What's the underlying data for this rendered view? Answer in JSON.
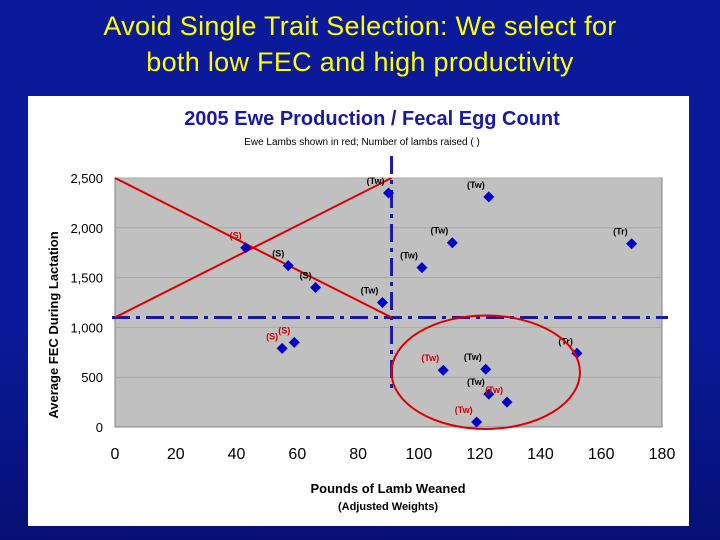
{
  "slide": {
    "title_line1": "Avoid Single Trait Selection:  We select for",
    "title_line2": "both low FEC and high productivity"
  },
  "chart_data": {
    "type": "scatter",
    "title": "2005 Ewe Production / Fecal Egg Count",
    "subtitle": "Ewe Lambs shown in red; Number of lambs raised ( )",
    "xlabel": "Pounds of Lamb Weaned",
    "xlabel_sub": "(Adjusted Weights)",
    "ylabel": "Average FEC During Lactation",
    "xlim": [
      0,
      180
    ],
    "ylim": [
      0,
      2500
    ],
    "xticks": [
      "0",
      "20",
      "40",
      "60",
      "80",
      "100",
      "120",
      "140",
      "160",
      "180"
    ],
    "yticks": [
      "0",
      "500",
      "1,000",
      "1,500",
      "2,000",
      "2,500"
    ],
    "colors": {
      "plot_bg": "#c0c0c0",
      "point": "#0000cc",
      "ewe_lamb_label": "#cc0000",
      "label": "#000000",
      "reference_line": "#1a1aa0",
      "annotation": "#dd0000",
      "title": "#1a1aa0"
    },
    "points": [
      {
        "x": 43,
        "y": 1800,
        "label": "(S)",
        "ewe_lamb": true
      },
      {
        "x": 57,
        "y": 1620,
        "label": "(S)",
        "ewe_lamb": false
      },
      {
        "x": 66,
        "y": 1400,
        "label": "(S)",
        "ewe_lamb": false
      },
      {
        "x": 59,
        "y": 850,
        "label": "(S)",
        "ewe_lamb": true
      },
      {
        "x": 55,
        "y": 790,
        "label": "(S)",
        "ewe_lamb": true
      },
      {
        "x": 90,
        "y": 2350,
        "label": "(Tw)",
        "ewe_lamb": false
      },
      {
        "x": 123,
        "y": 2310,
        "label": "(Tw)",
        "ewe_lamb": false
      },
      {
        "x": 111,
        "y": 1850,
        "label": "(Tw)",
        "ewe_lamb": false
      },
      {
        "x": 101,
        "y": 1600,
        "label": "(Tw)",
        "ewe_lamb": false
      },
      {
        "x": 88,
        "y": 1250,
        "label": "(Tw)",
        "ewe_lamb": false
      },
      {
        "x": 170,
        "y": 1840,
        "label": "(Tr)",
        "ewe_lamb": false
      },
      {
        "x": 152,
        "y": 740,
        "label": "(Tr)",
        "ewe_lamb": false
      },
      {
        "x": 108,
        "y": 570,
        "label": "(Tw)",
        "ewe_lamb": true
      },
      {
        "x": 122,
        "y": 580,
        "label": "(Tw)",
        "ewe_lamb": false
      },
      {
        "x": 123,
        "y": 330,
        "label": "(Tw)",
        "ewe_lamb": false
      },
      {
        "x": 129,
        "y": 250,
        "label": "(Tw)",
        "ewe_lamb": true
      },
      {
        "x": 119,
        "y": 50,
        "label": "(Tw)",
        "ewe_lamb": true
      }
    ],
    "reference_lines": {
      "vertical_x": 91,
      "horizontal_y": 1100
    },
    "trend_lines": [
      {
        "from": {
          "x": 0,
          "y": 2500
        },
        "to": {
          "x": 91,
          "y": 1100
        }
      },
      {
        "from": {
          "x": 0,
          "y": 1100
        },
        "to": {
          "x": 91,
          "y": 2500
        }
      }
    ],
    "highlight_ellipse": {
      "x_center": 122,
      "y_center": 550,
      "x_radius": 31,
      "y_radius": 570
    }
  }
}
